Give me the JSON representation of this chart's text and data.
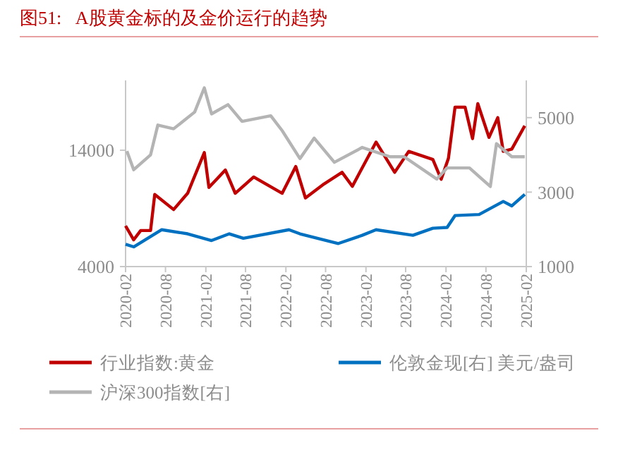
{
  "chart_data": {
    "type": "line",
    "title": "图51:   A股黄金标的及金价运行的趋势",
    "xlim": [
      "2020-02-01",
      "2025-02-01"
    ],
    "xticks": [
      "2020-02",
      "2020-08",
      "2021-02",
      "2021-08",
      "2022-02",
      "2022-08",
      "2023-02",
      "2023-08",
      "2024-02",
      "2024-08",
      "2025-02"
    ],
    "ylim": [
      4000,
      20000
    ],
    "yticks": [
      4000,
      14000
    ],
    "y2lim": [
      1000,
      6000
    ],
    "y2ticks": [
      1000,
      3000,
      5000
    ],
    "grid": false,
    "legend": "bottom",
    "line_style": "solid",
    "marker": "none",
    "series": [
      {
        "name": "行业指数:黄金",
        "color": "#c00000",
        "x": [
          "2020-02-01",
          "2020-03-09",
          "2020-04-10",
          "2020-05-25",
          "2020-06-13",
          "2020-09-07",
          "2020-11-10",
          "2021-01-25",
          "2021-02-15",
          "2021-05-01",
          "2021-06-15",
          "2021-09-07",
          "2022-01-15",
          "2022-03-18",
          "2022-05-01",
          "2022-07-25",
          "2022-10-15",
          "2022-12-01",
          "2023-03-19",
          "2023-06-12",
          "2023-08-15",
          "2023-12-03",
          "2024-01-10",
          "2024-02-12",
          "2024-03-13",
          "2024-04-28",
          "2024-06-01",
          "2024-06-25",
          "2024-08-15",
          "2024-09-24",
          "2024-10-19",
          "2024-11-27",
          "2025-01-25"
        ],
        "values": [
          7500,
          6300,
          7100,
          7100,
          10200,
          8900,
          10300,
          13800,
          10800,
          12300,
          10300,
          11700,
          10300,
          12600,
          9900,
          11100,
          12100,
          10900,
          14700,
          12100,
          13900,
          13200,
          11500,
          13300,
          17700,
          17700,
          15000,
          18000,
          15100,
          16800,
          13900,
          14100,
          16100
        ]
      },
      {
        "name": "伦敦金现[右] 美元/盎司",
        "color": "#0070c0",
        "axis": "y2",
        "x": [
          "2020-02-01",
          "2020-03-09",
          "2020-07-15",
          "2020-11-10",
          "2021-02-27",
          "2021-05-19",
          "2021-07-22",
          "2022-02-15",
          "2022-04-06",
          "2022-09-28",
          "2023-01-15",
          "2023-03-19",
          "2023-09-03",
          "2023-12-03",
          "2024-02-06",
          "2024-03-13",
          "2024-07-01",
          "2024-10-19",
          "2024-11-27",
          "2025-01-25"
        ],
        "values": [
          1600,
          1530,
          1990,
          1880,
          1700,
          1880,
          1760,
          1990,
          1880,
          1620,
          1840,
          1990,
          1840,
          2030,
          2050,
          2370,
          2400,
          2750,
          2630,
          2940
        ]
      },
      {
        "name": "沪深300指数[右]",
        "color": "#b4b4b4",
        "axis": "y2",
        "x": [
          "2020-02-07",
          "2020-03-09",
          "2020-05-25",
          "2020-06-27",
          "2020-09-07",
          "2020-12-12",
          "2021-01-25",
          "2021-02-27",
          "2021-05-13",
          "2021-07-16",
          "2021-11-24",
          "2022-01-15",
          "2022-04-06",
          "2022-06-10",
          "2022-09-10",
          "2023-01-15",
          "2023-05-22",
          "2023-07-25",
          "2023-12-21",
          "2024-02-06",
          "2024-05-18",
          "2024-08-21",
          "2024-09-18",
          "2024-11-27",
          "2025-01-25"
        ],
        "values": [
          4100,
          3600,
          4000,
          4800,
          4700,
          5150,
          5800,
          5100,
          5350,
          4900,
          5050,
          4650,
          3900,
          4450,
          3800,
          4200,
          3950,
          3950,
          3350,
          3650,
          3650,
          3150,
          4300,
          3950,
          3950
        ]
      }
    ]
  }
}
